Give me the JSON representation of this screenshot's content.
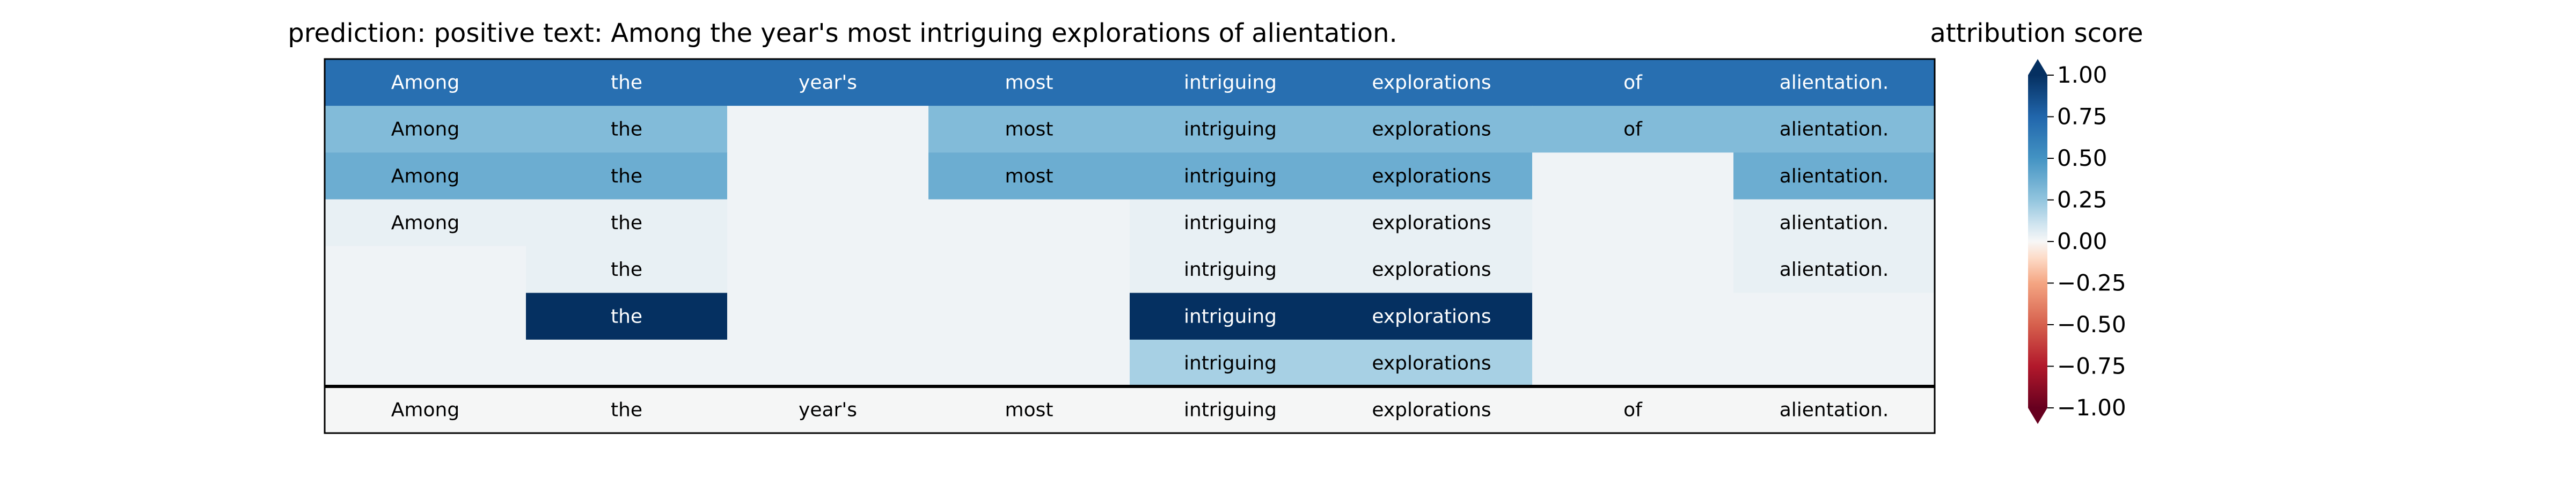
{
  "chart_data": {
    "type": "heatmap",
    "title": "prediction:  positive     text:  Among the year's most intriguing explorations of alientation.",
    "colorbar_label": "attribution score",
    "colormap": "RdBu",
    "value_range": [
      -1.0,
      1.0
    ],
    "colorbar_extend": "both",
    "colorbar_ticks": [
      {
        "value": 1.0,
        "label": "1.00"
      },
      {
        "value": 0.75,
        "label": "0.75"
      },
      {
        "value": 0.5,
        "label": "0.50"
      },
      {
        "value": 0.25,
        "label": "0.25"
      },
      {
        "value": 0.0,
        "label": "0.00"
      },
      {
        "value": -0.25,
        "label": "−0.25"
      },
      {
        "value": -0.5,
        "label": "−0.50"
      },
      {
        "value": -0.75,
        "label": "−0.75"
      },
      {
        "value": -1.0,
        "label": "−1.00"
      }
    ],
    "tokens": [
      "Among",
      "the",
      "year's",
      "most",
      "intriguing",
      "explorations",
      "of",
      "alientation."
    ],
    "rows": [
      {
        "values": [
          0.7,
          0.7,
          0.7,
          0.7,
          0.7,
          0.7,
          0.7,
          0.7
        ],
        "labels": [
          "Among",
          "the",
          "year's",
          "most",
          "intriguing",
          "explorations",
          "of",
          "alientation."
        ]
      },
      {
        "values": [
          0.3,
          0.3,
          0.02,
          0.3,
          0.3,
          0.3,
          0.3,
          0.3
        ],
        "labels": [
          "Among",
          "the",
          "",
          "most",
          "intriguing",
          "explorations",
          "of",
          "alientation."
        ]
      },
      {
        "values": [
          0.37,
          0.37,
          0.02,
          0.37,
          0.37,
          0.37,
          0.02,
          0.37
        ],
        "labels": [
          "Among",
          "the",
          "",
          "most",
          "intriguing",
          "explorations",
          "",
          "alientation."
        ]
      },
      {
        "values": [
          0.04,
          0.04,
          0.02,
          0.02,
          0.04,
          0.04,
          0.02,
          0.04
        ],
        "labels": [
          "Among",
          "the",
          "",
          "",
          "intriguing",
          "explorations",
          "",
          "alientation."
        ]
      },
      {
        "values": [
          0.02,
          0.04,
          0.02,
          0.02,
          0.04,
          0.04,
          0.02,
          0.04
        ],
        "labels": [
          "",
          "the",
          "",
          "",
          "intriguing",
          "explorations",
          "",
          "alientation."
        ]
      },
      {
        "values": [
          0.02,
          1.0,
          0.02,
          0.02,
          1.0,
          1.0,
          0.02,
          0.02
        ],
        "labels": [
          "",
          "the",
          "",
          "",
          "intriguing",
          "explorations",
          "",
          ""
        ]
      },
      {
        "values": [
          0.02,
          0.02,
          0.02,
          0.02,
          0.2,
          0.2,
          0.02,
          0.02
        ],
        "labels": [
          "",
          "",
          "",
          "",
          "intriguing",
          "explorations",
          "",
          ""
        ]
      }
    ],
    "footer_row": {
      "labels": [
        "Among",
        "the",
        "year's",
        "most",
        "intriguing",
        "explorations",
        "of",
        "alientation."
      ]
    }
  }
}
